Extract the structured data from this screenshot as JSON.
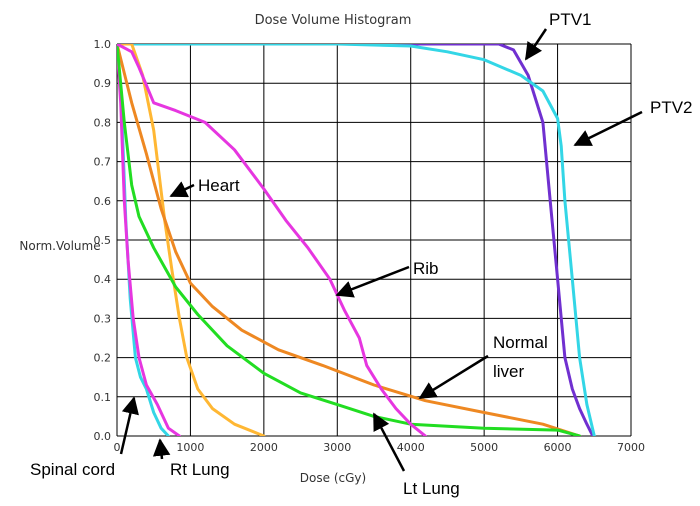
{
  "chart_data": {
    "type": "line",
    "title": "Dose Volume Histogram",
    "xlabel": "Dose (cGy)",
    "ylabel": "Norm.Volume",
    "xlim": [
      0,
      7000
    ],
    "ylim": [
      0,
      1.0
    ],
    "grid": true,
    "x_ticks": [
      "0",
      "1000",
      "2000",
      "3000",
      "4000",
      "5000",
      "6000",
      "7000"
    ],
    "y_ticks": [
      "0.0",
      "0.1",
      "0.2",
      "0.3",
      "0.4",
      "0.5",
      "0.6",
      "0.7",
      "0.8",
      "0.9",
      "1.0"
    ],
    "series": [
      {
        "name": "PTV1",
        "color": "#7030d0",
        "points": [
          [
            0,
            1.0
          ],
          [
            1000,
            1.0
          ],
          [
            3000,
            1.0
          ],
          [
            5000,
            1.0
          ],
          [
            5200,
            1.0
          ],
          [
            5400,
            0.985
          ],
          [
            5600,
            0.92
          ],
          [
            5800,
            0.8
          ],
          [
            5900,
            0.6
          ],
          [
            6000,
            0.4
          ],
          [
            6100,
            0.2
          ],
          [
            6200,
            0.12
          ],
          [
            6300,
            0.07
          ],
          [
            6400,
            0.03
          ],
          [
            6480,
            0.0
          ]
        ]
      },
      {
        "name": "PTV2",
        "color": "#33d6e6",
        "points": [
          [
            0,
            1.0
          ],
          [
            1000,
            1.0
          ],
          [
            2000,
            1.0
          ],
          [
            3000,
            1.0
          ],
          [
            4000,
            0.995
          ],
          [
            4500,
            0.98
          ],
          [
            5000,
            0.96
          ],
          [
            5500,
            0.92
          ],
          [
            5800,
            0.88
          ],
          [
            6000,
            0.81
          ],
          [
            6050,
            0.74
          ],
          [
            6100,
            0.6
          ],
          [
            6200,
            0.4
          ],
          [
            6300,
            0.2
          ],
          [
            6400,
            0.08
          ],
          [
            6500,
            0.0
          ]
        ]
      },
      {
        "name": "Spinal cord",
        "color": "#33d6e6",
        "points": [
          [
            0,
            1.0
          ],
          [
            60,
            0.85
          ],
          [
            120,
            0.55
          ],
          [
            180,
            0.35
          ],
          [
            250,
            0.2
          ],
          [
            320,
            0.15
          ],
          [
            400,
            0.12
          ],
          [
            500,
            0.06
          ],
          [
            600,
            0.02
          ],
          [
            700,
            0.0
          ]
        ]
      },
      {
        "name": "Rt Lung",
        "color": "#e636e0",
        "points": [
          [
            0,
            1.0
          ],
          [
            50,
            0.85
          ],
          [
            100,
            0.6
          ],
          [
            150,
            0.45
          ],
          [
            220,
            0.3
          ],
          [
            300,
            0.2
          ],
          [
            400,
            0.13
          ],
          [
            550,
            0.08
          ],
          [
            700,
            0.02
          ],
          [
            850,
            0.0
          ]
        ]
      },
      {
        "name": "Heart",
        "color": "#ffb733",
        "points": [
          [
            0,
            1.0
          ],
          [
            200,
            1.0
          ],
          [
            350,
            0.92
          ],
          [
            500,
            0.78
          ],
          [
            650,
            0.55
          ],
          [
            750,
            0.42
          ],
          [
            850,
            0.3
          ],
          [
            950,
            0.2
          ],
          [
            1100,
            0.12
          ],
          [
            1300,
            0.07
          ],
          [
            1600,
            0.03
          ],
          [
            2000,
            0.0
          ]
        ]
      },
      {
        "name": "Normal liver",
        "color": "#ee8822",
        "points": [
          [
            0,
            1.0
          ],
          [
            200,
            0.85
          ],
          [
            400,
            0.72
          ],
          [
            600,
            0.58
          ],
          [
            800,
            0.47
          ],
          [
            1000,
            0.39
          ],
          [
            1300,
            0.33
          ],
          [
            1700,
            0.27
          ],
          [
            2200,
            0.22
          ],
          [
            2800,
            0.18
          ],
          [
            3500,
            0.13
          ],
          [
            4200,
            0.09
          ],
          [
            5000,
            0.06
          ],
          [
            5800,
            0.03
          ],
          [
            6300,
            0.0
          ]
        ]
      },
      {
        "name": "Lt Lung",
        "color": "#22dd22",
        "points": [
          [
            0,
            1.0
          ],
          [
            100,
            0.8
          ],
          [
            200,
            0.64
          ],
          [
            300,
            0.56
          ],
          [
            500,
            0.48
          ],
          [
            800,
            0.38
          ],
          [
            1100,
            0.31
          ],
          [
            1500,
            0.23
          ],
          [
            2000,
            0.16
          ],
          [
            2500,
            0.11
          ],
          [
            3000,
            0.08
          ],
          [
            3500,
            0.05
          ],
          [
            4000,
            0.03
          ],
          [
            5000,
            0.02
          ],
          [
            6000,
            0.015
          ],
          [
            6300,
            0.0
          ]
        ]
      },
      {
        "name": "Rib",
        "color": "#e636e0",
        "points": [
          [
            0,
            1.0
          ],
          [
            200,
            0.98
          ],
          [
            300,
            0.94
          ],
          [
            500,
            0.85
          ],
          [
            800,
            0.83
          ],
          [
            1200,
            0.8
          ],
          [
            1600,
            0.73
          ],
          [
            2000,
            0.63
          ],
          [
            2300,
            0.55
          ],
          [
            2600,
            0.48
          ],
          [
            2900,
            0.4
          ],
          [
            3100,
            0.32
          ],
          [
            3300,
            0.25
          ],
          [
            3400,
            0.18
          ],
          [
            3600,
            0.12
          ],
          [
            3800,
            0.07
          ],
          [
            4000,
            0.03
          ],
          [
            4200,
            0.0
          ]
        ]
      }
    ],
    "annotations": [
      {
        "text": "PTV1",
        "series": "PTV1"
      },
      {
        "text": "PTV2",
        "series": "PTV2"
      },
      {
        "text": "Heart",
        "series": "Heart"
      },
      {
        "text": "Rib",
        "series": "Rib"
      },
      {
        "text": "Normal",
        "series": "Normal liver"
      },
      {
        "text": "liver",
        "series": "Normal liver"
      },
      {
        "text": "Spinal cord",
        "series": "Spinal cord"
      },
      {
        "text": "Rt Lung",
        "series": "Rt Lung"
      },
      {
        "text": "Lt Lung",
        "series": "Lt Lung"
      }
    ]
  }
}
